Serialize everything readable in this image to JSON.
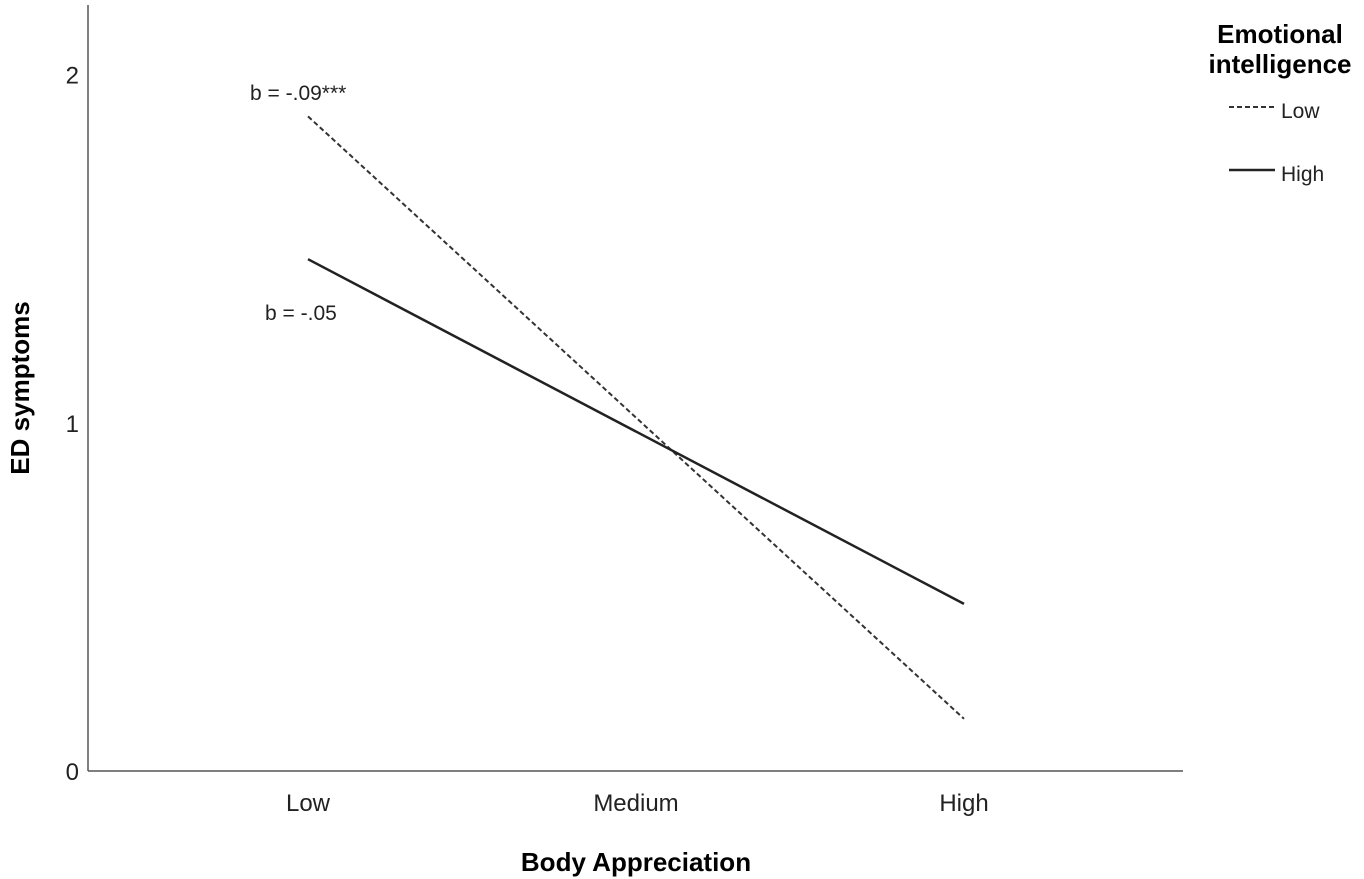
{
  "chart_data": {
    "type": "line",
    "xlabel": "Body Appreciation",
    "ylabel": "ED symptoms",
    "categories": [
      "Low",
      "Medium",
      "High"
    ],
    "ylim": [
      0,
      2.2
    ],
    "yticks": [
      0,
      1,
      2
    ],
    "grid": false,
    "legend": {
      "title_lines": [
        "Emotional",
        "intelligence"
      ],
      "placement": "top-right"
    },
    "series": [
      {
        "name": "Low",
        "style": "dashed",
        "color": "#333333",
        "x": [
          "Low",
          "High"
        ],
        "values": [
          1.88,
          0.15
        ]
      },
      {
        "name": "High",
        "style": "solid",
        "color": "#222222",
        "x": [
          "Low",
          "High"
        ],
        "values": [
          1.47,
          0.48
        ]
      }
    ],
    "annotations": [
      {
        "text": "b = -.09***",
        "series": "Low"
      },
      {
        "text": "b = -.05",
        "series": "High"
      }
    ]
  }
}
